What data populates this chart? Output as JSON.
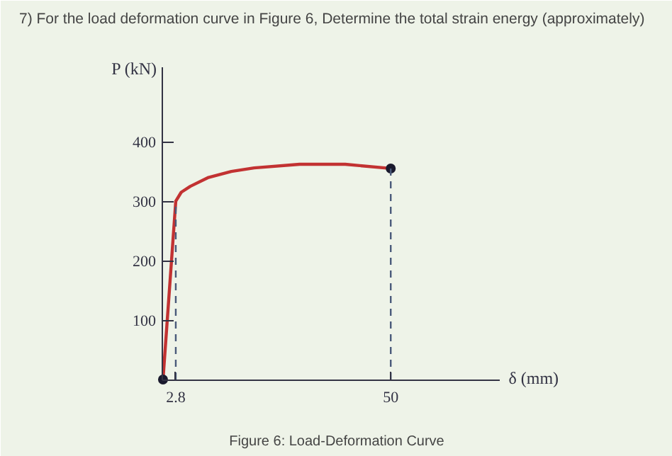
{
  "chart_data": {
    "type": "line",
    "title": "7)  For the load deformation curve in Figure 6, Determine the total strain energy (approximately)",
    "xlabel": "δ (mm)",
    "ylabel": "P (kN)",
    "annotations": [
      "Figure 6: Load-Deformation Curve"
    ],
    "series": [
      {
        "color": "#c23232",
        "x": [
          0,
          2.8,
          4,
          6,
          10,
          15,
          20,
          30,
          40,
          50
        ],
        "values": [
          0,
          300,
          315,
          325,
          340,
          350,
          356,
          362,
          362,
          355
        ]
      },
      {
        "type": "scatter",
        "marker": "circle",
        "color": "#1a1a2e",
        "x": [
          0,
          50
        ],
        "values": [
          0,
          355
        ]
      }
    ],
    "xlim": [
      0,
      74
    ],
    "ylim": [
      0,
      525
    ],
    "xticks": [
      2.8,
      50
    ],
    "yticks": [
      100,
      200,
      300,
      400
    ],
    "ref_lines": [
      {
        "axis": "x",
        "value": 2.8,
        "color": "#4a5a7a",
        "line_style": "dashed"
      },
      {
        "axis": "x",
        "value": 50,
        "color": "#4a5a7a",
        "line_style": "dashed"
      }
    ],
    "grid": false,
    "line_style": "solid"
  }
}
